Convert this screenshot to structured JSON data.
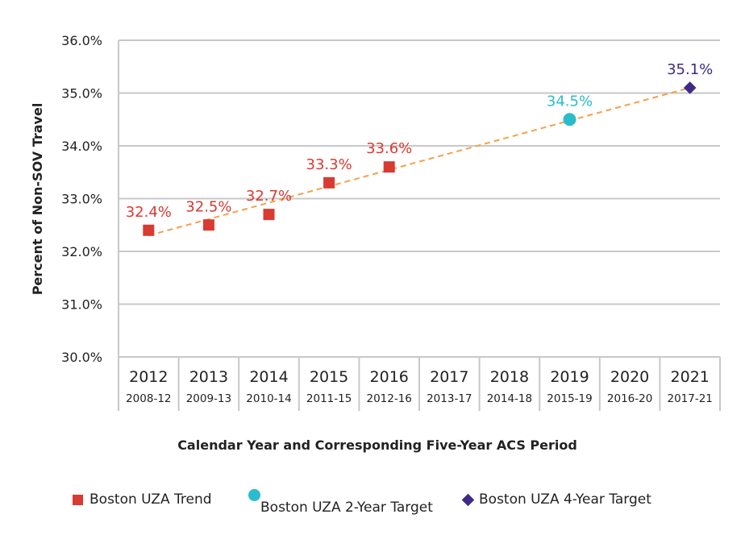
{
  "chart_data": {
    "type": "scatter",
    "ylabel": "Percent of Non-SOV Travel",
    "xlabel": "Calendar Year and Corresponding Five-Year ACS Period",
    "ylim": [
      30,
      36
    ],
    "yticks": [
      "30.0%",
      "31.0%",
      "32.0%",
      "33.0%",
      "34.0%",
      "35.0%",
      "36.0%"
    ],
    "categories": [
      "2012",
      "2013",
      "2014",
      "2015",
      "2016",
      "2017",
      "2018",
      "2019",
      "2020",
      "2021"
    ],
    "periods": [
      "2008-12",
      "2009-13",
      "2010-14",
      "2011-15",
      "2012-16",
      "2013-17",
      "2014-18",
      "2015-19",
      "2016-20",
      "2017-21"
    ],
    "grid": true,
    "legend_position": "bottom",
    "series": [
      {
        "name": "Boston UZA Trend",
        "marker": "square",
        "color": "#d93a32",
        "points": [
          {
            "x": "2012",
            "y": 32.4,
            "label": "32.4%"
          },
          {
            "x": "2013",
            "y": 32.5,
            "label": "32.5%"
          },
          {
            "x": "2014",
            "y": 32.7,
            "label": "32.7%"
          },
          {
            "x": "2015",
            "y": 33.3,
            "label": "33.3%"
          },
          {
            "x": "2016",
            "y": 33.6,
            "label": "33.6%"
          }
        ]
      },
      {
        "name": "Boston UZA 2-Year Target",
        "marker": "circle",
        "color": "#2bbccc",
        "points": [
          {
            "x": "2019",
            "y": 34.5,
            "label": "34.5%"
          }
        ]
      },
      {
        "name": "Boston UZA 4-Year Target",
        "marker": "diamond",
        "color": "#3f2a88",
        "points": [
          {
            "x": "2021",
            "y": 35.1,
            "label": "35.1%"
          }
        ]
      }
    ],
    "trendline": {
      "color": "#f5a04a",
      "style": "dashed",
      "from": {
        "x": "2012",
        "y": 32.3
      },
      "to": {
        "x": "2021",
        "y": 35.1
      }
    }
  }
}
